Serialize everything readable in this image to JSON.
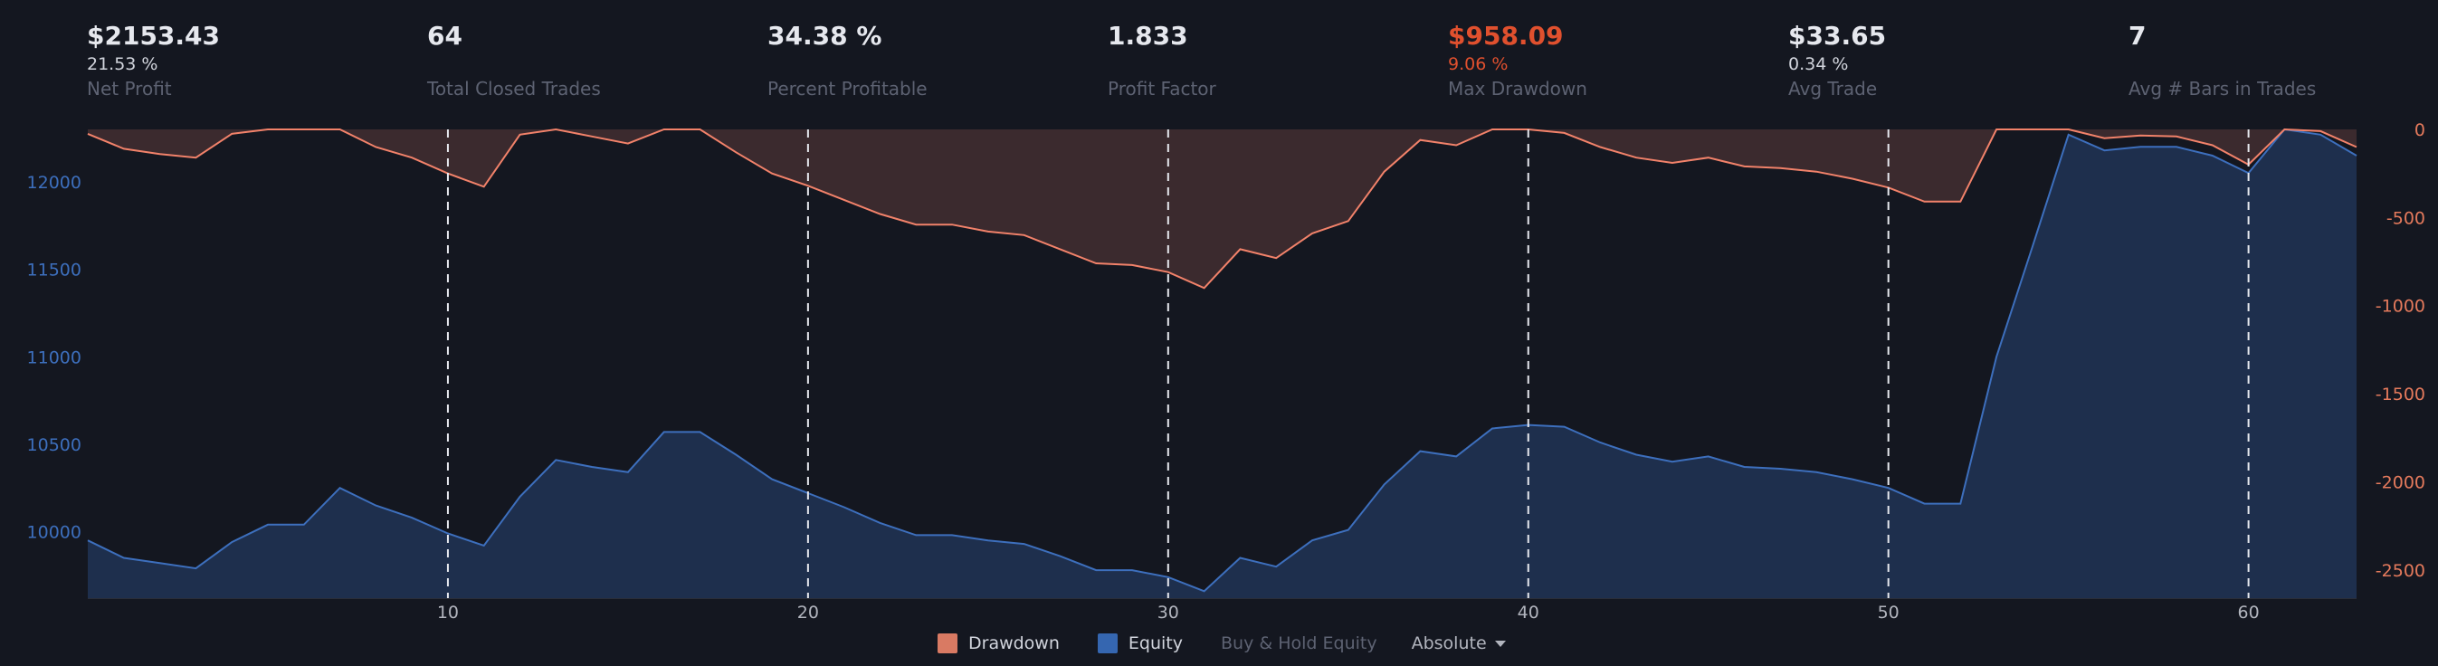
{
  "colors": {
    "drawdown_line": "#f2826a",
    "drawdown_fill": "#3b2a2e",
    "equity_line": "#3d6fbd",
    "equity_fill": "#1e2f4d",
    "left_axis_text": "#3d6fbd",
    "right_axis_text": "#e57a5c",
    "bottom_axis_text": "#b2b5be",
    "negative_value": "#e0502e",
    "marker_line": "#e6e8ee"
  },
  "stats": [
    {
      "value": "$2153.43",
      "sub": "21.53 %",
      "label": "Net Profit"
    },
    {
      "value": "64",
      "sub": "",
      "label": "Total Closed Trades"
    },
    {
      "value": "34.38 %",
      "sub": "",
      "label": "Percent Profitable"
    },
    {
      "value": "1.833",
      "sub": "",
      "label": "Profit Factor"
    },
    {
      "value": "$958.09",
      "sub": "9.06 %",
      "label": "Max Drawdown",
      "negative": true
    },
    {
      "value": "$33.65",
      "sub": "0.34 %",
      "label": "Avg Trade"
    },
    {
      "value": "7",
      "sub": "",
      "label": "Avg # Bars in Trades"
    }
  ],
  "legend": {
    "drawdown": "Drawdown",
    "equity": "Equity",
    "buy_hold": "Buy & Hold Equity",
    "mode": "Absolute"
  },
  "chart_data": {
    "type": "area",
    "x": [
      0,
      1,
      2,
      3,
      4,
      5,
      6,
      7,
      8,
      9,
      10,
      11,
      12,
      13,
      14,
      15,
      16,
      17,
      18,
      19,
      20,
      21,
      22,
      23,
      24,
      25,
      26,
      27,
      28,
      29,
      30,
      31,
      32,
      33,
      34,
      35,
      36,
      37,
      38,
      39,
      40,
      41,
      42,
      43,
      44,
      45,
      46,
      47,
      48,
      49,
      50,
      51,
      52,
      53,
      54,
      55,
      56,
      57,
      58,
      59,
      60,
      61,
      62,
      63
    ],
    "xlim": [
      0,
      63
    ],
    "xticks": [
      10,
      20,
      30,
      40,
      50,
      60
    ],
    "markers": [
      10,
      20,
      30,
      40,
      50,
      60
    ],
    "series": [
      {
        "name": "Equity",
        "axis": "left",
        "values": [
          9950,
          9850,
          9820,
          9790,
          9940,
          10040,
          10040,
          10250,
          10150,
          10080,
          9990,
          9920,
          10200,
          10410,
          10370,
          10340,
          10570,
          10570,
          10440,
          10300,
          10220,
          10140,
          10050,
          9980,
          9980,
          9950,
          9930,
          9860,
          9780,
          9780,
          9740,
          9660,
          9850,
          9800,
          9950,
          10010,
          10270,
          10460,
          10430,
          10590,
          10610,
          10600,
          10510,
          10440,
          10400,
          10430,
          10370,
          10360,
          10340,
          10300,
          10250,
          10160,
          10160,
          11000,
          11630,
          12270,
          12180,
          12200,
          12200,
          12150,
          12050,
          12300,
          12270,
          12150
        ],
        "ylim": [
          9620,
          12300
        ],
        "yticks": [
          10000,
          10500,
          11000,
          11500,
          12000
        ]
      },
      {
        "name": "Drawdown",
        "axis": "right",
        "values": [
          -25,
          -110,
          -140,
          -160,
          -25,
          0,
          0,
          0,
          -100,
          -160,
          -250,
          -325,
          -30,
          0,
          -40,
          -80,
          0,
          0,
          -130,
          -250,
          -320,
          -400,
          -480,
          -540,
          -540,
          -580,
          -600,
          -680,
          -760,
          -770,
          -810,
          -900,
          -680,
          -730,
          -590,
          -520,
          -240,
          -60,
          -90,
          0,
          0,
          -20,
          -100,
          -160,
          -190,
          -160,
          -210,
          -220,
          -240,
          -280,
          -330,
          -410,
          -410,
          0,
          0,
          0,
          -50,
          -35,
          -40,
          -90,
          -200,
          0,
          -10,
          -100
        ],
        "ylim": [
          -2660,
          0
        ],
        "yticks": [
          0,
          -500,
          -1000,
          -1500,
          -2000,
          -2500
        ]
      }
    ]
  }
}
